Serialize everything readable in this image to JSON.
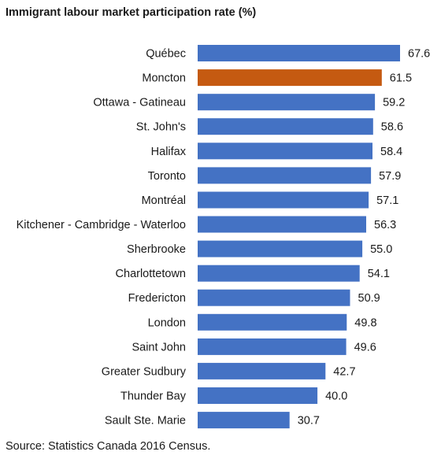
{
  "chart_data": {
    "type": "bar",
    "orientation": "horizontal",
    "title": "Immigrant labour market participation rate (%)",
    "source": "Source: Statistics Canada 2016 Census.",
    "categories": [
      "Québec",
      "Moncton",
      "Ottawa - Gatineau",
      "St. John's",
      "Halifax",
      "Toronto",
      "Montréal",
      "Kitchener - Cambridge - Waterloo",
      "Sherbrooke",
      "Charlottetown",
      "Fredericton",
      "London",
      "Saint John",
      "Greater Sudbury",
      "Thunder Bay",
      "Sault Ste. Marie"
    ],
    "values": [
      67.6,
      61.5,
      59.2,
      58.6,
      58.4,
      57.9,
      57.1,
      56.3,
      55.0,
      54.1,
      50.9,
      49.8,
      49.6,
      42.7,
      40.0,
      30.7
    ],
    "value_labels": [
      "67.6",
      "61.5",
      "59.2",
      "58.6",
      "58.4",
      "57.9",
      "57.1",
      "56.3",
      "55.0",
      "54.1",
      "50.9",
      "49.8",
      "49.6",
      "42.7",
      "40.0",
      "30.7"
    ],
    "highlight": "Moncton",
    "colors": {
      "default": "#4472C4",
      "highlight": "#C55A11"
    },
    "xlim": [
      0,
      67.6
    ],
    "grid": false,
    "legend": "none"
  }
}
